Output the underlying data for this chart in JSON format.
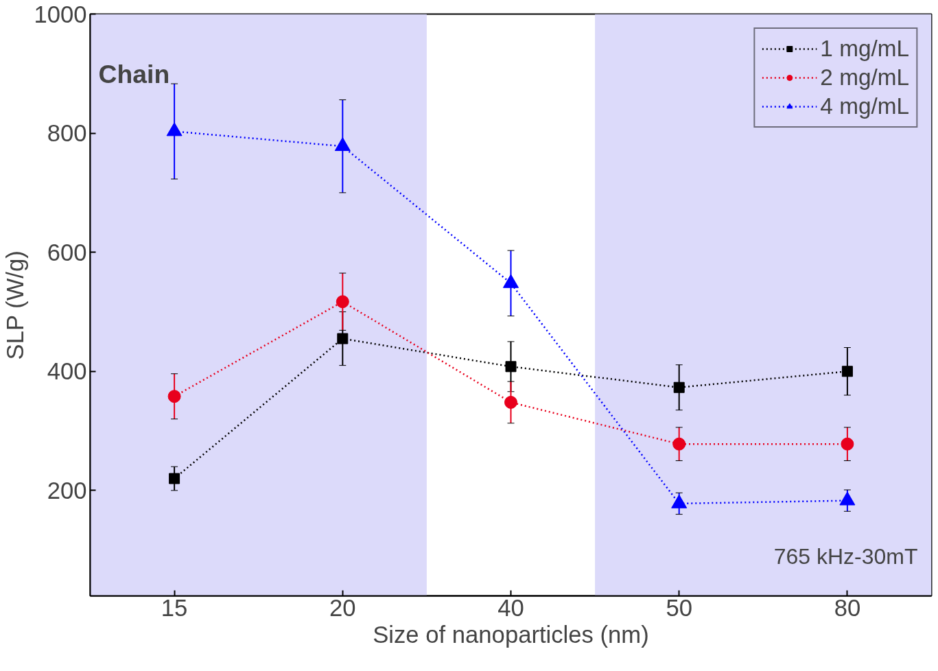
{
  "chart_data": {
    "type": "line",
    "xlabel": "Size of nanoparticles (nm)",
    "ylabel": "SLP (W/g)",
    "categories": [
      "15",
      "20",
      "40",
      "50",
      "80"
    ],
    "series": [
      {
        "name": "1 mg/mL",
        "color": "#000000",
        "marker": "square",
        "values": [
          220,
          455,
          408,
          373,
          400
        ],
        "errors": [
          20,
          45,
          42,
          38,
          40
        ]
      },
      {
        "name": "2 mg/mL",
        "color": "#e8001c",
        "marker": "circle",
        "values": [
          358,
          517,
          348,
          278,
          278
        ],
        "errors": [
          38,
          48,
          35,
          28,
          28
        ]
      },
      {
        "name": "4 mg/mL",
        "color": "#0000ff",
        "marker": "triangle",
        "values": [
          803,
          778,
          548,
          178,
          183
        ],
        "errors": [
          80,
          78,
          55,
          18,
          18
        ]
      }
    ],
    "ylim": [
      23,
      1000
    ],
    "yticks": [
      200,
      400,
      600,
      800,
      1000
    ],
    "bands": [
      {
        "axis": "x",
        "from": "15",
        "to": "20",
        "color": "#dcdafa"
      },
      {
        "axis": "x",
        "from": "50",
        "to": "80",
        "color": "#dcdafa"
      }
    ],
    "annotations": [
      "Chain",
      "765 kHz-30mT"
    ],
    "line_style": "dotted",
    "grid": false,
    "legend": "top right"
  }
}
